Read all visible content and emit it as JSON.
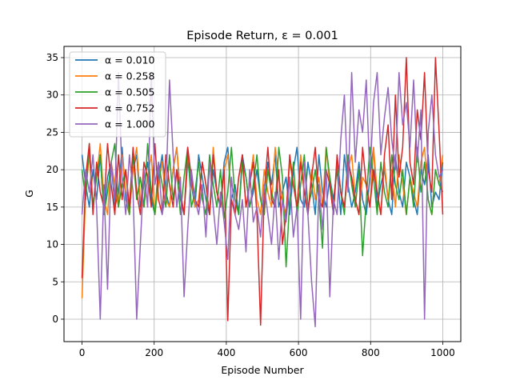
{
  "chart_data": {
    "type": "line",
    "title": "Episode Return, ε = 0.001",
    "xlabel": "Episode Number",
    "ylabel": "G",
    "xlim": [
      -50,
      1050
    ],
    "ylim": [
      -3,
      36.5
    ],
    "xticks": [
      0,
      200,
      400,
      600,
      800,
      1000
    ],
    "yticks": [
      0,
      5,
      10,
      15,
      20,
      25,
      30,
      35
    ],
    "grid": true,
    "legend_position": "upper-left",
    "episodes": 1000,
    "series": [
      {
        "name": "α = 0.010",
        "color": "#1f77b4",
        "values": [
          22,
          18,
          15,
          20,
          16,
          22,
          14,
          19,
          21,
          15,
          17,
          23,
          16,
          14,
          20,
          22,
          15,
          18,
          21,
          16,
          14,
          19,
          22,
          17,
          15,
          20,
          23,
          16,
          14,
          21,
          18,
          15,
          22,
          19,
          16,
          14,
          20,
          17,
          15,
          21,
          23,
          16,
          18,
          14,
          22,
          19,
          15,
          17,
          20,
          16,
          14,
          21,
          18,
          22,
          15,
          17,
          19,
          14,
          20,
          23,
          16,
          15,
          21,
          18,
          14,
          22,
          17,
          15,
          19,
          16,
          20,
          14,
          22,
          18,
          15,
          17,
          21,
          16,
          14,
          19,
          23,
          15,
          18,
          20,
          16,
          14,
          22,
          17,
          15,
          21,
          19,
          16,
          14,
          20,
          18,
          22,
          15,
          17,
          16,
          21
        ]
      },
      {
        "name": "α = 0.258",
        "color": "#ff7f0e",
        "values": [
          2.8,
          17,
          22,
          15,
          19,
          23.5,
          16,
          14,
          21,
          18,
          15,
          22,
          17,
          14,
          20,
          23,
          16,
          15,
          19,
          22,
          14,
          18,
          21,
          16,
          15,
          20,
          23,
          17,
          14,
          22,
          19,
          15,
          16,
          21,
          18,
          14,
          23,
          17,
          15,
          20,
          22,
          16,
          14,
          19,
          21,
          15,
          18,
          22,
          16,
          14,
          20,
          17,
          15,
          23,
          19,
          16,
          14,
          21,
          18,
          15,
          22,
          17,
          14,
          20,
          16,
          19,
          15,
          23,
          18,
          14,
          21,
          17,
          15,
          20,
          22,
          16,
          14,
          19,
          18,
          15,
          23,
          17,
          14,
          21,
          16,
          20,
          15,
          22,
          18,
          14,
          19,
          17,
          15,
          21,
          23,
          16,
          14,
          20,
          18,
          22
        ]
      },
      {
        "name": "α = 0.505",
        "color": "#2ca02c",
        "values": [
          20,
          16,
          23.5,
          15,
          19,
          22,
          14,
          17,
          21,
          23.5,
          15,
          18,
          20,
          14,
          22,
          16,
          19,
          15,
          23.5,
          17,
          14,
          21,
          18,
          15,
          22,
          16,
          20,
          14,
          19,
          23,
          15,
          17,
          21,
          16,
          14,
          22,
          18,
          15,
          20,
          13.5,
          17,
          23,
          16,
          14,
          21,
          19,
          15,
          18,
          22,
          16,
          14,
          20,
          17,
          15,
          23,
          19,
          7,
          16,
          21,
          14,
          18,
          22,
          15,
          17,
          20,
          16,
          9.5,
          23,
          19,
          15,
          21,
          17,
          14,
          22,
          18,
          15,
          20,
          8.5,
          16,
          23,
          19,
          14,
          21,
          17,
          15,
          22,
          18,
          16,
          20,
          14,
          19,
          15,
          23,
          17,
          21,
          16,
          14,
          20,
          18,
          17
        ]
      },
      {
        "name": "α = 0.752",
        "color": "#d62728",
        "values": [
          5.5,
          19,
          23.5,
          14,
          21,
          17,
          15,
          23.5,
          18,
          14,
          22,
          16,
          20,
          15,
          23,
          17,
          14,
          21,
          19,
          15,
          23.5,
          16,
          14,
          22,
          18,
          15,
          20,
          17,
          14,
          23,
          19,
          16,
          15,
          21,
          18,
          14,
          22,
          17,
          15,
          20,
          -0.2,
          16,
          14,
          19,
          22,
          15,
          18,
          21,
          14,
          -0.8,
          17,
          23,
          16,
          15,
          20,
          10,
          14,
          22,
          18,
          15,
          21,
          17,
          14,
          19,
          23,
          16,
          15,
          20,
          18,
          14,
          22,
          17,
          15,
          21,
          19,
          16,
          14,
          23,
          18,
          15,
          20,
          17,
          14,
          22,
          26,
          16,
          30,
          19,
          23,
          35,
          21,
          18,
          28,
          24,
          33,
          20,
          17,
          35,
          25,
          14
        ]
      },
      {
        "name": "α = 1.000",
        "color": "#9467bd",
        "values": [
          14,
          20,
          17,
          22,
          15,
          0,
          18,
          4,
          21,
          16,
          33,
          19,
          14,
          22,
          17,
          0,
          10,
          20,
          15,
          33,
          18,
          21,
          14,
          17,
          32,
          22,
          15,
          19,
          3,
          12,
          20,
          16,
          14,
          18,
          11,
          21,
          15,
          10,
          17,
          13,
          8,
          19,
          14,
          12,
          16,
          9,
          20,
          13,
          15,
          11,
          18,
          14,
          10,
          17,
          8,
          16,
          13,
          19,
          11,
          15,
          0,
          21,
          14,
          5,
          -1,
          18,
          12,
          20,
          3,
          16,
          14,
          24,
          30,
          17,
          33,
          21,
          28,
          25,
          32,
          19,
          29,
          33,
          22,
          27,
          31,
          24,
          20,
          33,
          26,
          29,
          23,
          32,
          21,
          28,
          0,
          25,
          30,
          22,
          19,
          20
        ]
      }
    ]
  }
}
